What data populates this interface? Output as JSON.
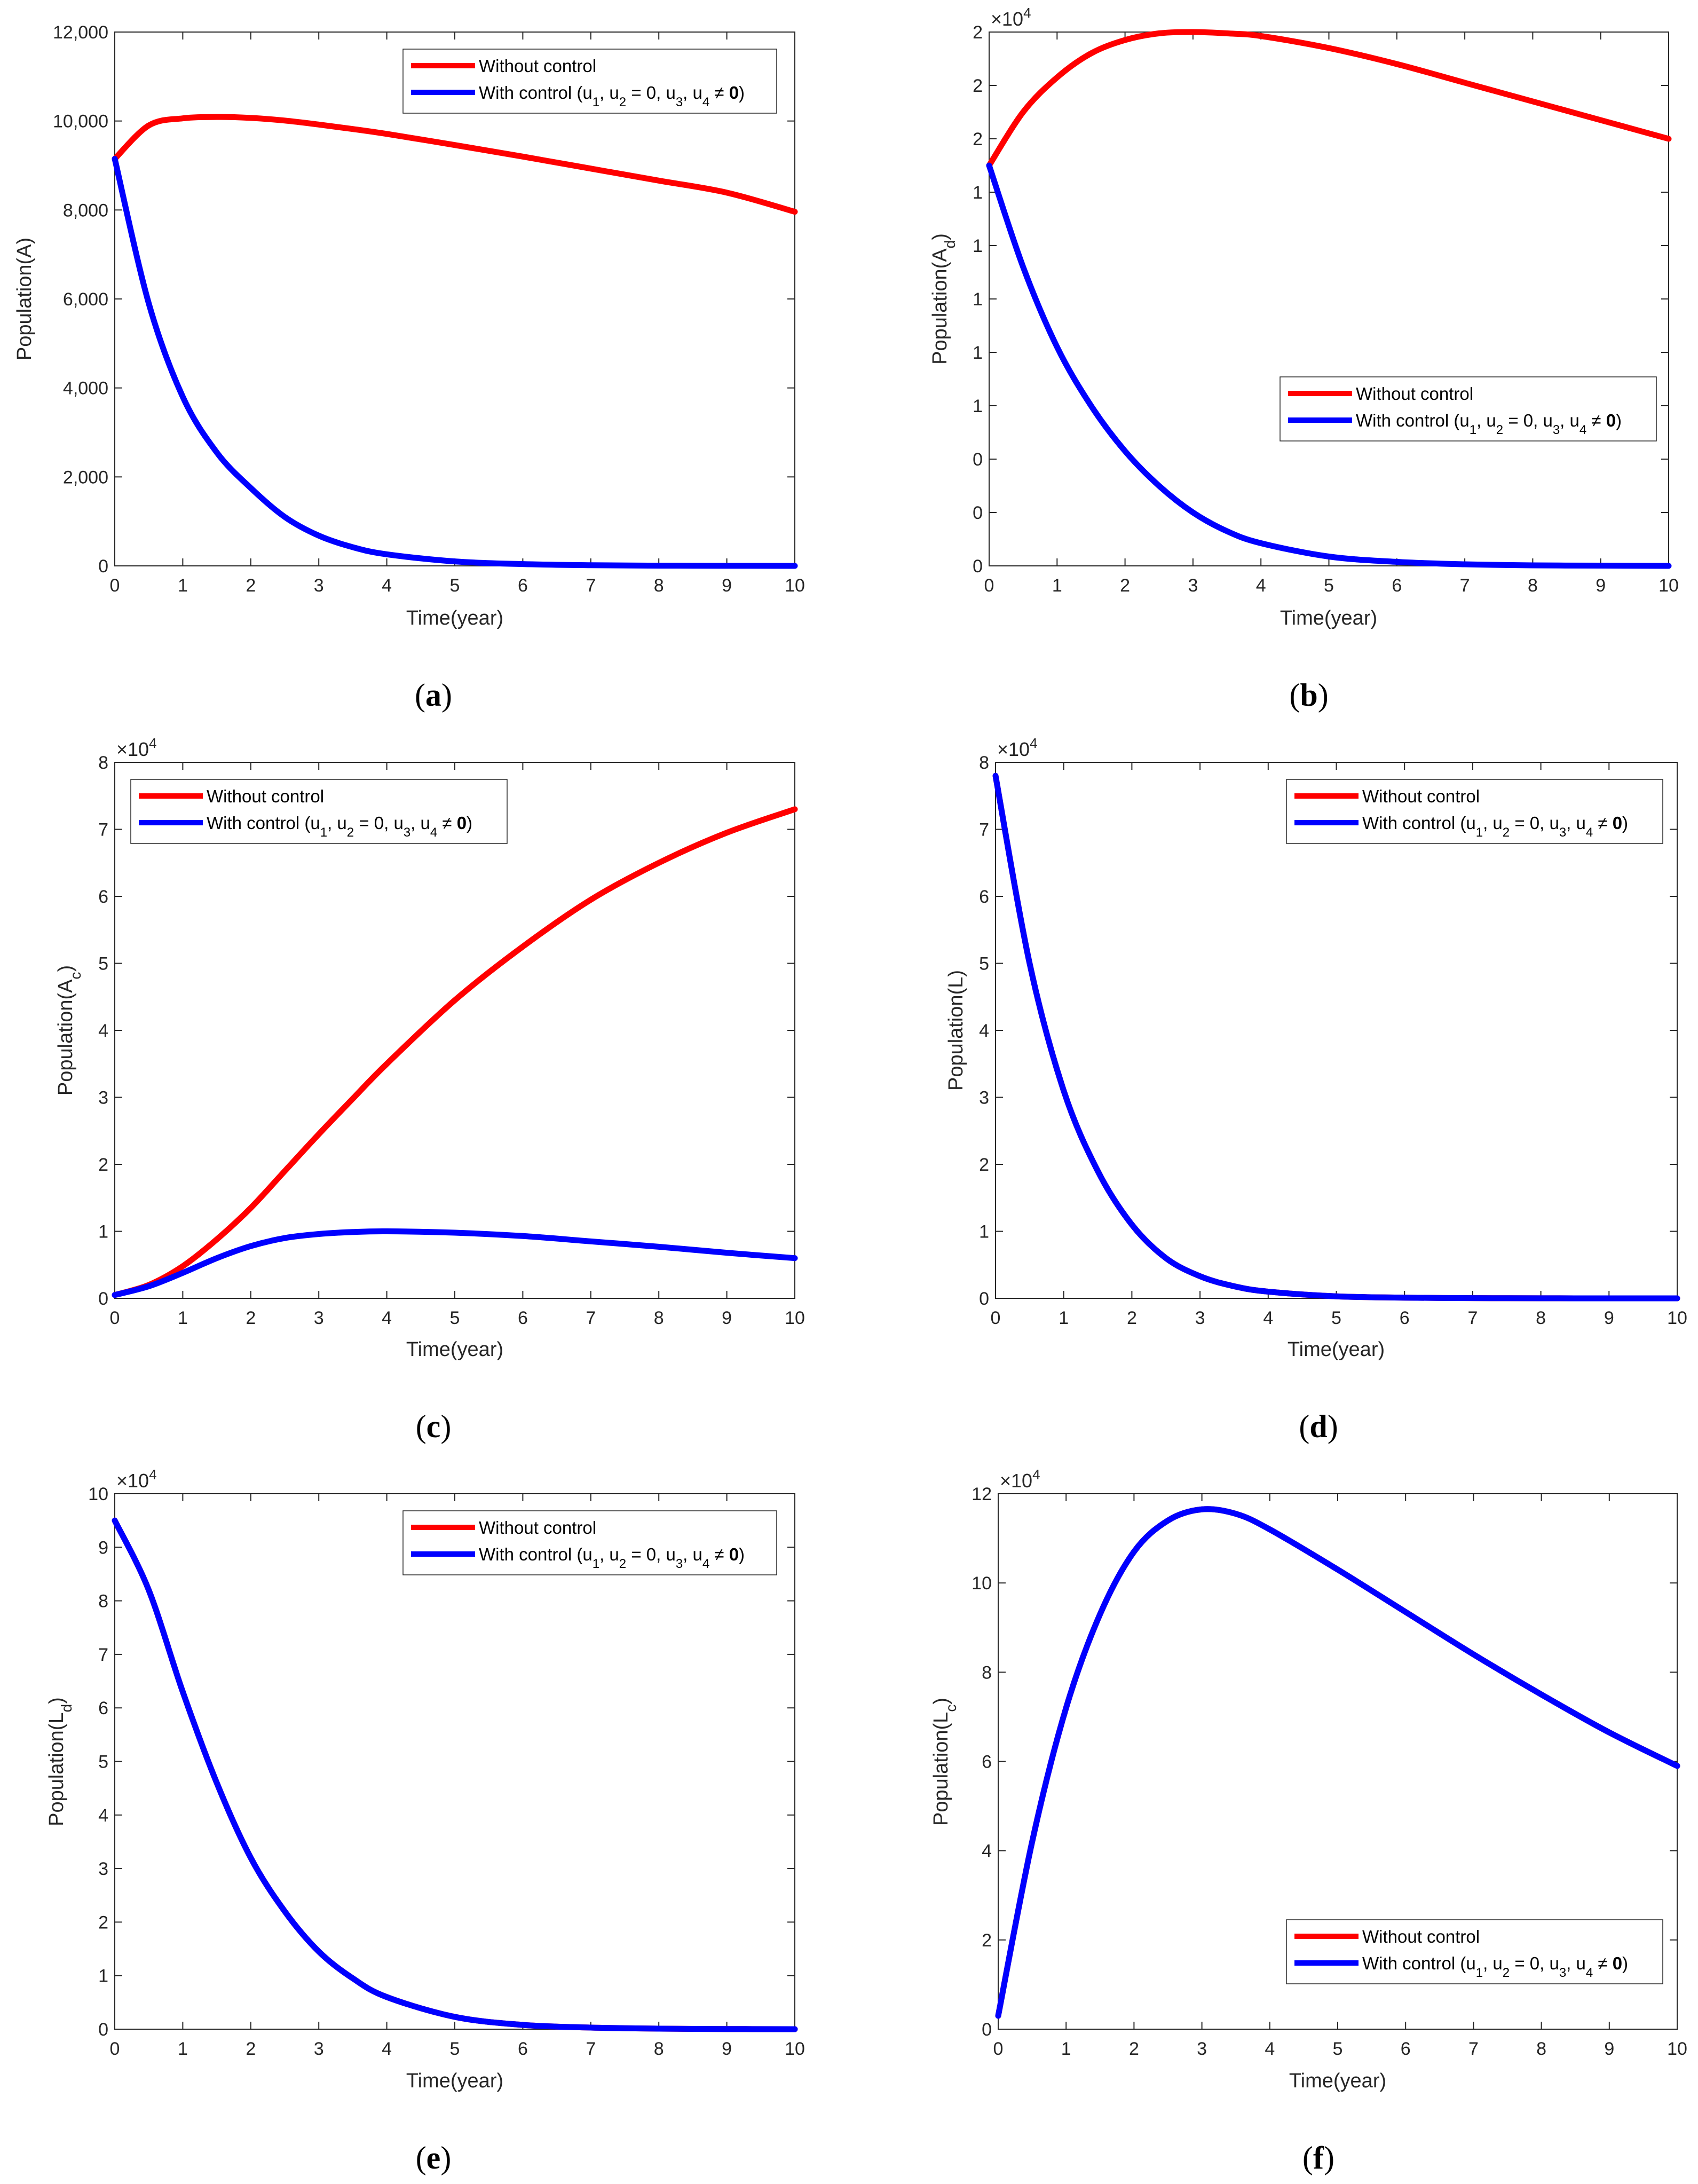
{
  "series_colors": {
    "without": "#ff0000",
    "with": "#0000ff"
  },
  "legend": {
    "without": "Without control",
    "with_prefix": "With control (u",
    "sub1": "1",
    "sep1": ", u",
    "sub2": "2",
    "mid": " = 0, u",
    "sub3": "3",
    "sep2": ", u",
    "sub4": "4",
    "ne": " ≠ ",
    "zero": "0",
    "close": ")"
  },
  "panels": [
    {
      "caption": "a",
      "multiplier_base": "",
      "multiplier_exp": "",
      "ylabel_main": "Population(A)",
      "ylabel_sub": "",
      "ylabel_close": "",
      "xlabel": "Time(year)"
    },
    {
      "caption": "b",
      "multiplier_base": "×10",
      "multiplier_exp": "4",
      "ylabel_main": "Population(A",
      "ylabel_sub": "d",
      "ylabel_close": ")",
      "xlabel": "Time(year)"
    },
    {
      "caption": "c",
      "multiplier_base": "×10",
      "multiplier_exp": "4",
      "ylabel_main": "Population(A",
      "ylabel_sub": "c",
      "ylabel_close": ")",
      "xlabel": "Time(year)"
    },
    {
      "caption": "d",
      "multiplier_base": "×10",
      "multiplier_exp": "4",
      "ylabel_main": "Population(L)",
      "ylabel_sub": "",
      "ylabel_close": "",
      "xlabel": "Time(year)"
    },
    {
      "caption": "e",
      "multiplier_base": "×10",
      "multiplier_exp": "4",
      "ylabel_main": "Population(L",
      "ylabel_sub": "d",
      "ylabel_close": ")",
      "xlabel": "Time(year)"
    },
    {
      "caption": "f",
      "multiplier_base": "×10",
      "multiplier_exp": "4",
      "ylabel_main": "Population(L",
      "ylabel_sub": "c",
      "ylabel_close": ")",
      "xlabel": "Time(year)"
    }
  ],
  "chart_data": [
    {
      "type": "line",
      "title": "(a)",
      "xlabel": "Time(year)",
      "ylabel": "Population(A)",
      "xlim": [
        0,
        10
      ],
      "ylim": [
        0,
        12000
      ],
      "xticks": [
        "0",
        "1",
        "2",
        "3",
        "4",
        "5",
        "6",
        "7",
        "8",
        "9",
        "10"
      ],
      "yticks": [
        "0",
        "2,000",
        "4,000",
        "6,000",
        "8,000",
        "10,000",
        "12,000"
      ],
      "legend_position": "top-right",
      "x": [
        0,
        0.5,
        1,
        1.5,
        2,
        2.5,
        3,
        3.5,
        4,
        5,
        6,
        7,
        8,
        9,
        10
      ],
      "series": [
        {
          "name": "Without control",
          "key": "without",
          "values": [
            9150,
            9900,
            10060,
            10090,
            10070,
            10010,
            9920,
            9820,
            9710,
            9460,
            9200,
            8930,
            8660,
            8390,
            7960
          ]
        },
        {
          "name": "With control (u1, u2 = 0, u3, u4 ≠ 0)",
          "key": "with",
          "values": [
            9150,
            5900,
            3800,
            2550,
            1750,
            1100,
            680,
            420,
            260,
            100,
            40,
            15,
            5,
            2,
            0
          ]
        }
      ]
    },
    {
      "type": "line",
      "title": "(b)",
      "xlabel": "Time(year)",
      "ylabel": "Population(Ad)",
      "multiplier": "×10^4",
      "xlim": [
        0,
        10
      ],
      "ylim": [
        0,
        2
      ],
      "xticks": [
        "0",
        "1",
        "2",
        "3",
        "4",
        "5",
        "6",
        "7",
        "8",
        "9",
        "10"
      ],
      "yticks": [
        "0",
        "0",
        "0",
        "1",
        "1",
        "1",
        "1",
        "1",
        "2",
        "2",
        "2"
      ],
      "legend_position": "right",
      "x": [
        0,
        0.5,
        1,
        1.5,
        2,
        2.5,
        3,
        3.5,
        4,
        5,
        6,
        7,
        8,
        9,
        10
      ],
      "series": [
        {
          "name": "Without control",
          "key": "without",
          "values": [
            1.5,
            1.7,
            1.83,
            1.92,
            1.97,
            1.995,
            2.0,
            1.995,
            1.985,
            1.94,
            1.88,
            1.81,
            1.74,
            1.67,
            1.6
          ]
        },
        {
          "name": "With control (u1, u2 = 0, u3, u4 ≠ 0)",
          "key": "with",
          "values": [
            1.5,
            1.12,
            0.82,
            0.6,
            0.43,
            0.3,
            0.2,
            0.13,
            0.085,
            0.035,
            0.015,
            0.006,
            0.002,
            0.001,
            0
          ]
        }
      ]
    },
    {
      "type": "line",
      "title": "(c)",
      "xlabel": "Time(year)",
      "ylabel": "Population(Ac)",
      "multiplier": "×10^4",
      "xlim": [
        0,
        10
      ],
      "ylim": [
        0,
        8
      ],
      "xticks": [
        "0",
        "1",
        "2",
        "3",
        "4",
        "5",
        "6",
        "7",
        "8",
        "9",
        "10"
      ],
      "yticks": [
        "0",
        "1",
        "2",
        "3",
        "4",
        "5",
        "6",
        "7",
        "8"
      ],
      "legend_position": "top-left",
      "x": [
        0,
        0.5,
        1,
        1.5,
        2,
        2.5,
        3,
        3.5,
        4,
        5,
        6,
        7,
        8,
        9,
        10
      ],
      "series": [
        {
          "name": "Without control",
          "key": "without",
          "values": [
            0.05,
            0.2,
            0.48,
            0.88,
            1.35,
            1.9,
            2.45,
            2.98,
            3.5,
            4.45,
            5.25,
            5.95,
            6.5,
            6.95,
            7.3
          ]
        },
        {
          "name": "With control (u1, u2 = 0, u3, u4 ≠ 0)",
          "key": "with",
          "values": [
            0.05,
            0.18,
            0.38,
            0.6,
            0.78,
            0.9,
            0.96,
            0.99,
            1.0,
            0.98,
            0.93,
            0.85,
            0.77,
            0.68,
            0.6
          ]
        }
      ]
    },
    {
      "type": "line",
      "title": "(d)",
      "xlabel": "Time(year)",
      "ylabel": "Population(L)",
      "multiplier": "×10^4",
      "xlim": [
        0,
        10
      ],
      "ylim": [
        0,
        8
      ],
      "xticks": [
        "0",
        "1",
        "2",
        "3",
        "4",
        "5",
        "6",
        "7",
        "8",
        "9",
        "10"
      ],
      "yticks": [
        "0",
        "1",
        "2",
        "3",
        "4",
        "5",
        "6",
        "7",
        "8"
      ],
      "legend_position": "top-right",
      "x": [
        0,
        0.5,
        1,
        1.5,
        2,
        2.5,
        3,
        3.5,
        4,
        5,
        6,
        7,
        8,
        9,
        10
      ],
      "series": [
        {
          "name": "Without control",
          "key": "without",
          "values": [
            7.8,
            5.0,
            3.1,
            1.9,
            1.1,
            0.6,
            0.33,
            0.18,
            0.1,
            0.03,
            0.01,
            0.003,
            0.001,
            0,
            0
          ]
        },
        {
          "name": "With control (u1, u2 = 0, u3, u4 ≠ 0)",
          "key": "with",
          "values": [
            7.8,
            5.0,
            3.1,
            1.9,
            1.1,
            0.6,
            0.33,
            0.18,
            0.1,
            0.03,
            0.01,
            0.003,
            0.001,
            0,
            0
          ]
        }
      ]
    },
    {
      "type": "line",
      "title": "(e)",
      "xlabel": "Time(year)",
      "ylabel": "Population(Ld)",
      "multiplier": "×10^4",
      "xlim": [
        0,
        10
      ],
      "ylim": [
        0,
        10
      ],
      "xticks": [
        "0",
        "1",
        "2",
        "3",
        "4",
        "5",
        "6",
        "7",
        "8",
        "9",
        "10"
      ],
      "yticks": [
        "0",
        "1",
        "2",
        "3",
        "4",
        "5",
        "6",
        "7",
        "8",
        "9",
        "10"
      ],
      "legend_position": "top-right",
      "x": [
        0,
        0.5,
        1,
        1.5,
        2,
        2.5,
        3,
        3.5,
        4,
        5,
        6,
        7,
        8,
        9,
        10
      ],
      "series": [
        {
          "name": "Without control",
          "key": "without",
          "values": [
            9.5,
            8.2,
            6.3,
            4.6,
            3.2,
            2.2,
            1.45,
            0.95,
            0.6,
            0.23,
            0.08,
            0.03,
            0.01,
            0.003,
            0
          ]
        },
        {
          "name": "With control (u1, u2 = 0, u3, u4 ≠ 0)",
          "key": "with",
          "values": [
            9.5,
            8.2,
            6.3,
            4.6,
            3.2,
            2.2,
            1.45,
            0.95,
            0.6,
            0.23,
            0.08,
            0.03,
            0.01,
            0.003,
            0
          ]
        }
      ]
    },
    {
      "type": "line",
      "title": "(f)",
      "xlabel": "Time(year)",
      "ylabel": "Population(Lc)",
      "multiplier": "×10^4",
      "xlim": [
        0,
        10
      ],
      "ylim": [
        0,
        12
      ],
      "xticks": [
        "0",
        "1",
        "2",
        "3",
        "4",
        "5",
        "6",
        "7",
        "8",
        "9",
        "10"
      ],
      "yticks": [
        "0",
        "2",
        "4",
        "6",
        "8",
        "10",
        "12"
      ],
      "legend_position": "bottom-right",
      "x": [
        0,
        0.5,
        1,
        1.5,
        2,
        2.5,
        3,
        3.5,
        4,
        5,
        6,
        7,
        8,
        9,
        10
      ],
      "series": [
        {
          "name": "Without control",
          "key": "without",
          "values": [
            0.3,
            4.2,
            7.2,
            9.3,
            10.7,
            11.4,
            11.65,
            11.55,
            11.2,
            10.3,
            9.35,
            8.4,
            7.5,
            6.65,
            5.9
          ]
        },
        {
          "name": "With control (u1, u2 = 0, u3, u4 ≠ 0)",
          "key": "with",
          "values": [
            0.3,
            4.2,
            7.2,
            9.3,
            10.7,
            11.4,
            11.65,
            11.55,
            11.2,
            10.3,
            9.35,
            8.4,
            7.5,
            6.65,
            5.9
          ]
        }
      ]
    }
  ]
}
